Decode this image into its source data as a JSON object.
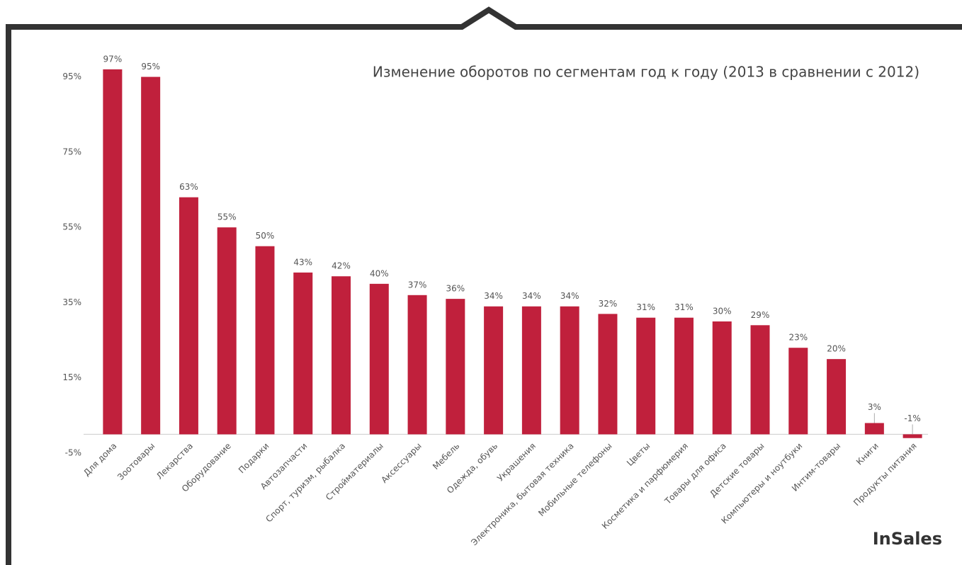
{
  "chart_data": {
    "type": "bar",
    "title": "Изменение оборотов по сегментам год к году (2013 в сравнении с 2012)",
    "categories": [
      "Для дома",
      "Зоотовары",
      "Лекарства",
      "Оборудование",
      "Подарки",
      "Автозапчасти",
      "Спорт, туризм, рыбалка",
      "Стройматериалы",
      "Аксессуары",
      "Мебель",
      "Одежда, обувь",
      "Украшения",
      "Электроника, бытовая техника",
      "Мобильные телефоны",
      "Цветы",
      "Косметика и парфюмерия",
      "Товары для офиса",
      "Детские товары",
      "Компьютеры и ноутбуки",
      "Интим-товары",
      "Книги",
      "Продукты питания"
    ],
    "values": [
      97,
      95,
      63,
      55,
      50,
      43,
      42,
      40,
      37,
      36,
      34,
      34,
      34,
      32,
      31,
      31,
      30,
      29,
      23,
      20,
      3,
      -1
    ],
    "value_labels": [
      "97%",
      "95%",
      "63%",
      "55%",
      "50%",
      "43%",
      "42%",
      "40%",
      "37%",
      "36%",
      "34%",
      "34%",
      "34%",
      "32%",
      "31%",
      "31%",
      "30%",
      "29%",
      "23%",
      "20%",
      "3%",
      "-1%"
    ],
    "color": "#c0203c",
    "ylim": [
      -5,
      100
    ],
    "yticks": [
      {
        "value": -5,
        "label": "-5%"
      },
      {
        "value": 15,
        "label": "15%"
      },
      {
        "value": 35,
        "label": "35%"
      },
      {
        "value": 55,
        "label": "55%"
      },
      {
        "value": 75,
        "label": "75%"
      },
      {
        "value": 95,
        "label": "95%"
      }
    ],
    "grid": false
  },
  "brand": "InSales"
}
